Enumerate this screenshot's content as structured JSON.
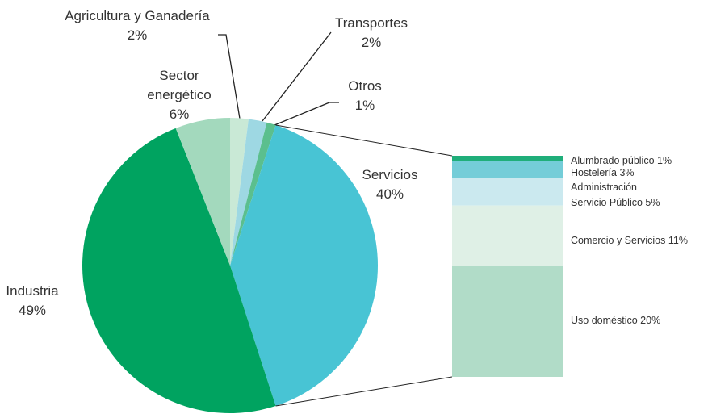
{
  "chart_data": [
    {
      "type": "pie",
      "categories": [
        "Agricultura y Ganadería",
        "Transportes",
        "Otros",
        "Servicios",
        "Industria",
        "Sector energético"
      ],
      "values": [
        2,
        2,
        1,
        40,
        49,
        6
      ],
      "value_labels": [
        "2%",
        "2%",
        "1%",
        "40%",
        "49%",
        "6%"
      ],
      "colors": [
        "#c9e9d6",
        "#9ed8e3",
        "#5bbf8e",
        "#48c4d4",
        "#00a360",
        "#a3d9bd"
      ]
    },
    {
      "type": "bar",
      "categories": [
        "Alumbrado público",
        "Hostelería",
        "Administración Servicio Público",
        "Comercio y Servicios",
        "Uso doméstico"
      ],
      "values": [
        1,
        3,
        5,
        11,
        20
      ],
      "value_labels": [
        "1%",
        "3%",
        "5%",
        "11%",
        "20%"
      ],
      "colors": [
        "#1fae7a",
        "#74cdd8",
        "#cbe9ef",
        "#dff0e6",
        "#b1dcc8"
      ]
    }
  ]
}
